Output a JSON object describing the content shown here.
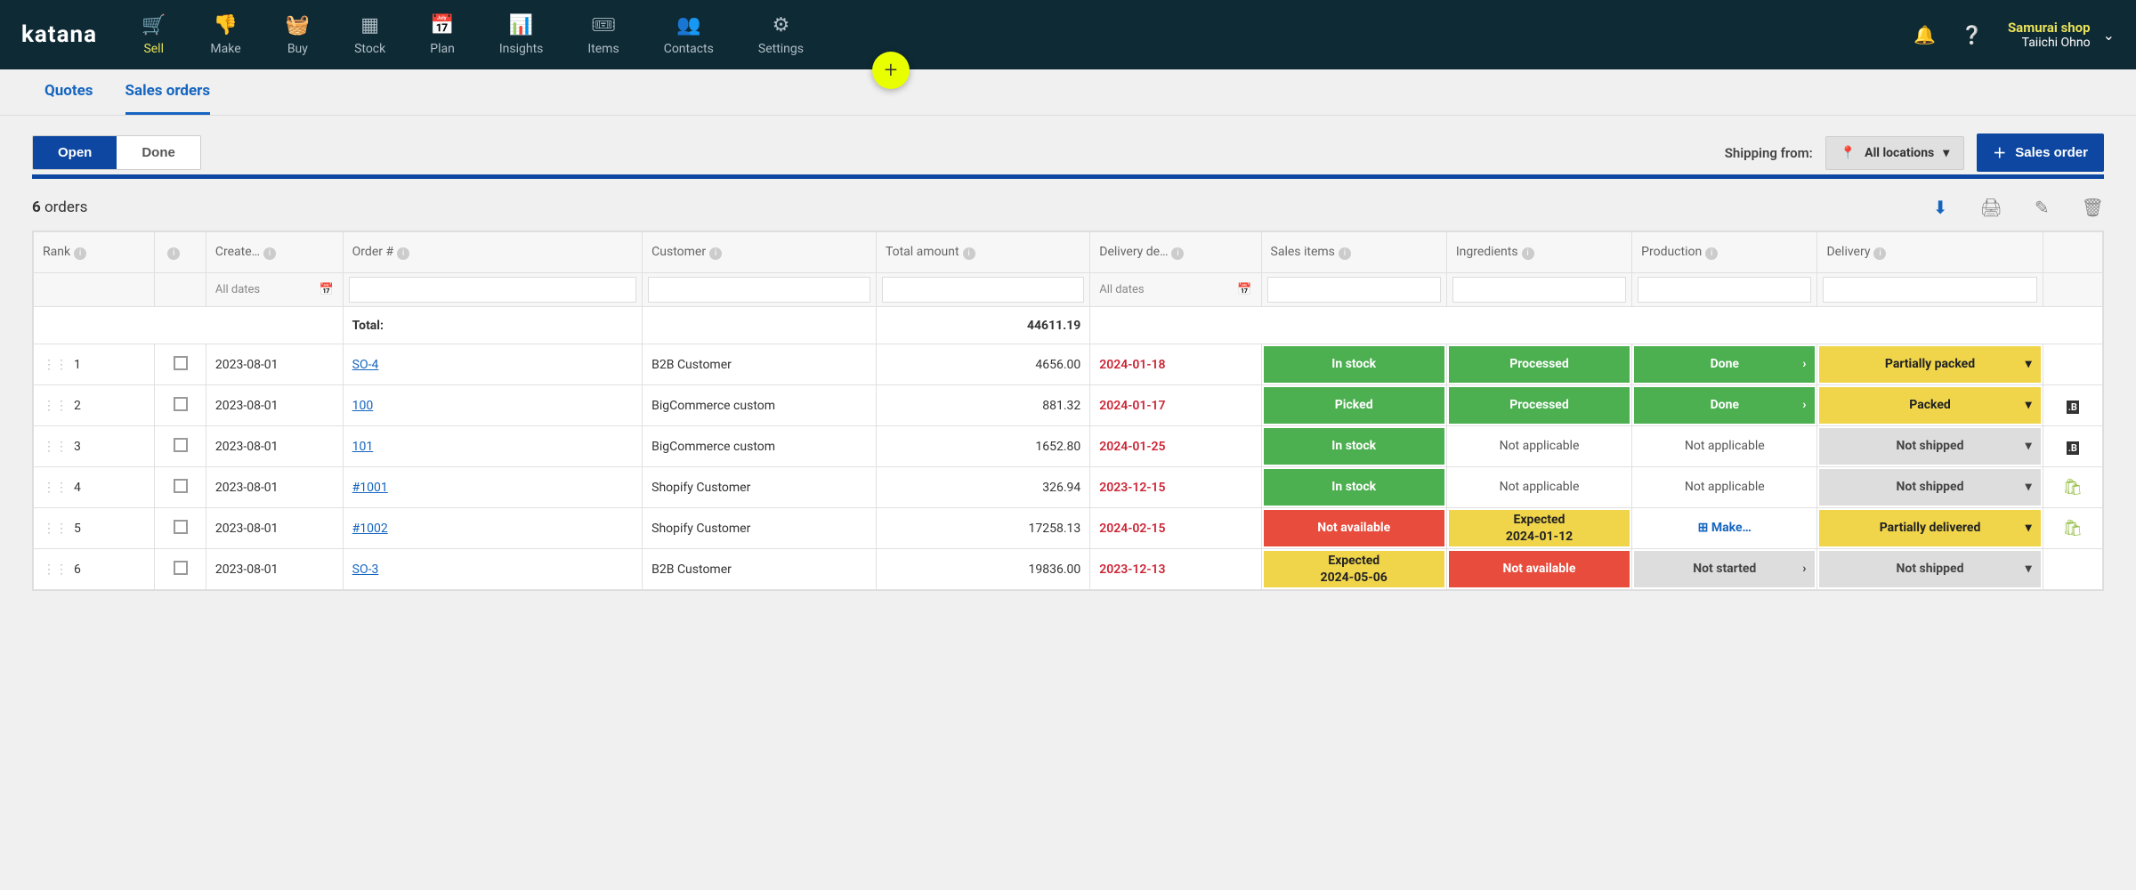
{
  "brand": "katana",
  "nav": [
    {
      "label": "Sell",
      "active": true
    },
    {
      "label": "Make"
    },
    {
      "label": "Buy"
    },
    {
      "label": "Stock"
    },
    {
      "label": "Plan"
    },
    {
      "label": "Insights"
    },
    {
      "label": "Items"
    },
    {
      "label": "Contacts"
    },
    {
      "label": "Settings"
    }
  ],
  "nav_icons": [
    "🛒",
    "👎",
    "🧺",
    "▦",
    "📅",
    "📊",
    "🎟",
    "👥",
    "⚙"
  ],
  "user": {
    "shop": "Samurai shop",
    "name": "Taiichi Ohno"
  },
  "subtabs": [
    {
      "label": "Quotes"
    },
    {
      "label": "Sales orders",
      "active": true
    }
  ],
  "viewtabs": [
    {
      "label": "Open",
      "active": true
    },
    {
      "label": "Done"
    }
  ],
  "shipping_label": "Shipping from:",
  "location_selector": "All locations",
  "new_order_btn": "Sales order",
  "order_count": "6",
  "order_count_suffix": " orders",
  "filter_all_dates": "All dates",
  "columns": [
    "Rank",
    "",
    "Create…",
    "Order #",
    "Customer",
    "Total amount",
    "Delivery de…",
    "Sales items",
    "Ingredients",
    "Production",
    "Delivery",
    ""
  ],
  "total_label": "Total:",
  "total_amount": "44611.19",
  "status_colors": {
    "green": "#4caf50",
    "yellow": "#f0d54b",
    "red": "#e74c3c",
    "grey": "#dddddd",
    "white": "#ffffff"
  },
  "rows": [
    {
      "rank": "1",
      "created": "2023-08-01",
      "order": "SO-4",
      "customer": "B2B Customer",
      "amount": "4656.00",
      "deadline": "2024-01-18",
      "sales": {
        "text": "In stock",
        "cls": "green"
      },
      "ing": {
        "text": "Processed",
        "cls": "green"
      },
      "prod": {
        "text": "Done",
        "cls": "green",
        "arrow": "›"
      },
      "del": {
        "text": "Partially packed",
        "cls": "yellow",
        "arrow": "▾"
      },
      "src": ""
    },
    {
      "rank": "2",
      "created": "2023-08-01",
      "order": "100",
      "customer": "BigCommerce custom",
      "amount": "881.32",
      "deadline": "2024-01-17",
      "sales": {
        "text": "Picked",
        "cls": "green"
      },
      "ing": {
        "text": "Processed",
        "cls": "green"
      },
      "prod": {
        "text": "Done",
        "cls": "green",
        "arrow": "›"
      },
      "del": {
        "text": "Packed",
        "cls": "yellow",
        "arrow": "▾"
      },
      "src": "B"
    },
    {
      "rank": "3",
      "created": "2023-08-01",
      "order": "101",
      "customer": "BigCommerce custom",
      "amount": "1652.80",
      "deadline": "2024-01-25",
      "sales": {
        "text": "In stock",
        "cls": "green"
      },
      "ing": {
        "text": "Not applicable",
        "cls": "white"
      },
      "prod": {
        "text": "Not applicable",
        "cls": "white"
      },
      "del": {
        "text": "Not shipped",
        "cls": "grey",
        "arrow": "▾"
      },
      "src": "B"
    },
    {
      "rank": "4",
      "created": "2023-08-01",
      "order": "#1001",
      "customer": "Shopify Customer",
      "amount": "326.94",
      "deadline": "2023-12-15",
      "sales": {
        "text": "In stock",
        "cls": "green"
      },
      "ing": {
        "text": "Not applicable",
        "cls": "white"
      },
      "prod": {
        "text": "Not applicable",
        "cls": "white"
      },
      "del": {
        "text": "Not shipped",
        "cls": "grey",
        "arrow": "▾"
      },
      "src": "S"
    },
    {
      "rank": "5",
      "created": "2023-08-01",
      "order": "#1002",
      "customer": "Shopify Customer",
      "amount": "17258.13",
      "deadline": "2024-02-15",
      "sales": {
        "text": "Not available",
        "cls": "red"
      },
      "ing": {
        "text": "Expected",
        "sub": "2024-01-12",
        "cls": "yellow"
      },
      "prod": {
        "text": "⊞ Make…",
        "cls": "white-link"
      },
      "del": {
        "text": "Partially delivered",
        "cls": "yellow",
        "arrow": "▾"
      },
      "src": "S"
    },
    {
      "rank": "6",
      "created": "2023-08-01",
      "order": "SO-3",
      "customer": "B2B Customer",
      "amount": "19836.00",
      "deadline": "2023-12-13",
      "sales": {
        "text": "Expected",
        "sub": "2024-05-06",
        "cls": "yellow"
      },
      "ing": {
        "text": "Not available",
        "cls": "red"
      },
      "prod": {
        "text": "Not started",
        "cls": "grey",
        "arrow": "›"
      },
      "del": {
        "text": "Not shipped",
        "cls": "grey",
        "arrow": "▾"
      },
      "src": ""
    }
  ]
}
